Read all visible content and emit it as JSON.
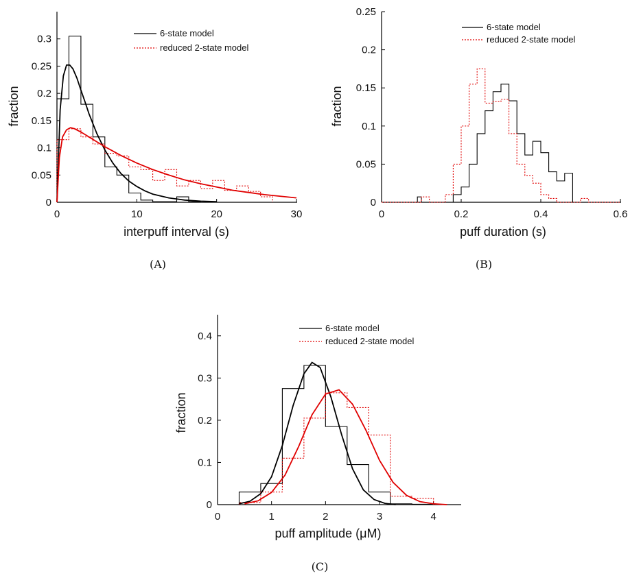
{
  "chart_data": [
    {
      "type": "line",
      "caption": "(A)",
      "xlabel": "interpuff interval (s)",
      "ylabel": "fraction",
      "xlim": [
        0,
        30
      ],
      "ylim": [
        0,
        0.35
      ],
      "xticks": [
        0,
        10,
        20,
        30
      ],
      "yticks": [
        0,
        0.05,
        0.1,
        0.15,
        0.2,
        0.25,
        0.3
      ],
      "xtick_labels": [
        "0",
        "10",
        "20",
        "30"
      ],
      "ytick_labels": [
        "0",
        "0.05",
        "0.1",
        "0.15",
        "0.2",
        "0.25",
        "0.3"
      ],
      "legend_position": "top-right",
      "series": [
        {
          "name": "6-state model",
          "kind": "histogram",
          "color": "#000000",
          "dash": "solid",
          "edges": [
            0,
            1.5,
            3,
            4.5,
            6,
            7.5,
            9,
            10.5,
            12,
            13.5,
            15,
            16.5,
            18,
            19.5
          ],
          "values": [
            0.19,
            0.305,
            0.18,
            0.12,
            0.065,
            0.05,
            0.017,
            0.004,
            0.001,
            0.001,
            0.01,
            0.001,
            0.0
          ]
        },
        {
          "name": "reduced 2-state model",
          "kind": "histogram",
          "color": "#e00000",
          "dash": "dotted",
          "edges": [
            0,
            1.5,
            3,
            4.5,
            6,
            7.5,
            9,
            10.5,
            12,
            13.5,
            15,
            16.5,
            18,
            19.5,
            21,
            22.5,
            24,
            25.5,
            27
          ],
          "values": [
            0.115,
            0.135,
            0.12,
            0.107,
            0.09,
            0.085,
            0.065,
            0.06,
            0.04,
            0.06,
            0.03,
            0.04,
            0.025,
            0.04,
            0.022,
            0.03,
            0.02,
            0.01
          ]
        },
        {
          "kind": "curve",
          "color": "#000000",
          "dash": "solid",
          "x": [
            0,
            0.4,
            0.8,
            1.2,
            1.6,
            2,
            2.5,
            3,
            3.5,
            4,
            5,
            6,
            7,
            8,
            9,
            10,
            11,
            12,
            14,
            16,
            18,
            20
          ],
          "y": [
            0,
            0.17,
            0.232,
            0.252,
            0.252,
            0.245,
            0.228,
            0.206,
            0.185,
            0.163,
            0.126,
            0.096,
            0.072,
            0.053,
            0.039,
            0.029,
            0.021,
            0.015,
            0.008,
            0.004,
            0.002,
            0.001
          ]
        },
        {
          "kind": "curve",
          "color": "#e00000",
          "dash": "solid",
          "x": [
            0,
            0.3,
            0.7,
            1.2,
            1.7,
            2.2,
            3,
            4,
            5,
            6,
            7,
            8,
            10,
            12,
            14,
            16,
            18,
            20,
            22,
            24,
            26,
            28,
            30
          ],
          "y": [
            0,
            0.082,
            0.12,
            0.133,
            0.137,
            0.135,
            0.129,
            0.12,
            0.111,
            0.102,
            0.094,
            0.086,
            0.072,
            0.06,
            0.05,
            0.041,
            0.034,
            0.028,
            0.022,
            0.018,
            0.014,
            0.011,
            0.008
          ]
        }
      ]
    },
    {
      "type": "line",
      "caption": "(B)",
      "xlabel": "puff duration (s)",
      "ylabel": "fraction",
      "xlim": [
        0,
        0.6
      ],
      "ylim": [
        0,
        0.25
      ],
      "xticks": [
        0,
        0.2,
        0.4,
        0.6
      ],
      "yticks": [
        0,
        0.05,
        0.1,
        0.15,
        0.2,
        0.25
      ],
      "xtick_labels": [
        "0",
        "0.2",
        "0.4",
        "0.6"
      ],
      "ytick_labels": [
        "0",
        "0.05",
        "0.1",
        "0.15",
        "0.2",
        "0.25"
      ],
      "legend_position": "top-right",
      "series": [
        {
          "name": "6-state model",
          "kind": "histogram",
          "color": "#000000",
          "dash": "solid",
          "edges": [
            0,
            0.09,
            0.1,
            0.18,
            0.2,
            0.22,
            0.24,
            0.26,
            0.28,
            0.3,
            0.32,
            0.34,
            0.36,
            0.38,
            0.4,
            0.42,
            0.44,
            0.46,
            0.48,
            0.6
          ],
          "values": [
            0,
            0.007,
            0,
            0.01,
            0.02,
            0.05,
            0.09,
            0.12,
            0.145,
            0.155,
            0.133,
            0.09,
            0.062,
            0.08,
            0.065,
            0.04,
            0.028,
            0.038,
            0.0
          ]
        },
        {
          "name": "reduced 2-state model",
          "kind": "histogram",
          "color": "#e00000",
          "dash": "dotted",
          "edges": [
            0,
            0.1,
            0.12,
            0.16,
            0.18,
            0.2,
            0.22,
            0.24,
            0.26,
            0.28,
            0.3,
            0.32,
            0.34,
            0.36,
            0.38,
            0.4,
            0.42,
            0.44,
            0.5,
            0.52,
            0.6
          ],
          "values": [
            0,
            0.007,
            0,
            0.01,
            0.05,
            0.1,
            0.155,
            0.175,
            0.13,
            0.132,
            0.135,
            0.09,
            0.05,
            0.035,
            0.025,
            0.01,
            0.005,
            0,
            0.005,
            0
          ]
        }
      ]
    },
    {
      "type": "line",
      "caption": "(C)",
      "xlabel": "puff amplitude (μM)",
      "ylabel": "fraction",
      "xlim": [
        0,
        4.5
      ],
      "ylim": [
        0,
        0.45
      ],
      "xticks": [
        0,
        1,
        2,
        3,
        4
      ],
      "yticks": [
        0,
        0.1,
        0.2,
        0.3,
        0.4
      ],
      "xtick_labels": [
        "0",
        "1",
        "2",
        "3",
        "4"
      ],
      "ytick_labels": [
        "0",
        "0.1",
        "0.2",
        "0.3",
        "0.4"
      ],
      "legend_position": "top-right",
      "series": [
        {
          "name": "6-state model",
          "kind": "histogram",
          "color": "#000000",
          "dash": "solid",
          "edges": [
            0.4,
            0.8,
            1.2,
            1.6,
            2.0,
            2.4,
            2.8,
            3.2,
            3.6,
            4.0
          ],
          "values": [
            0.03,
            0.05,
            0.275,
            0.33,
            0.185,
            0.095,
            0.03,
            0.002,
            0.001
          ]
        },
        {
          "name": "reduced 2-state model",
          "kind": "histogram",
          "color": "#e00000",
          "dash": "dotted",
          "edges": [
            0.4,
            0.8,
            1.2,
            1.6,
            2.0,
            2.4,
            2.8,
            3.2,
            3.6,
            4.0
          ],
          "values": [
            0.005,
            0.03,
            0.11,
            0.205,
            0.265,
            0.23,
            0.165,
            0.02,
            0.015
          ]
        },
        {
          "kind": "curve",
          "color": "#000000",
          "dash": "solid",
          "x": [
            0.4,
            0.6,
            0.8,
            1.0,
            1.2,
            1.4,
            1.6,
            1.75,
            1.9,
            2.1,
            2.3,
            2.5,
            2.7,
            2.9,
            3.1,
            3.3
          ],
          "y": [
            0.002,
            0.008,
            0.026,
            0.066,
            0.14,
            0.235,
            0.31,
            0.337,
            0.325,
            0.255,
            0.165,
            0.085,
            0.035,
            0.012,
            0.003,
            0.0
          ]
        },
        {
          "kind": "curve",
          "color": "#e00000",
          "dash": "solid",
          "x": [
            0.5,
            0.75,
            1.0,
            1.25,
            1.5,
            1.75,
            2.0,
            2.25,
            2.5,
            2.75,
            3.0,
            3.25,
            3.5,
            3.75,
            4.0,
            4.25
          ],
          "y": [
            0.002,
            0.009,
            0.029,
            0.07,
            0.137,
            0.213,
            0.262,
            0.272,
            0.238,
            0.176,
            0.105,
            0.053,
            0.022,
            0.007,
            0.002,
            0.0
          ]
        }
      ]
    }
  ],
  "legend": {
    "entries": [
      "6-state model",
      "reduced 2-state model"
    ]
  }
}
